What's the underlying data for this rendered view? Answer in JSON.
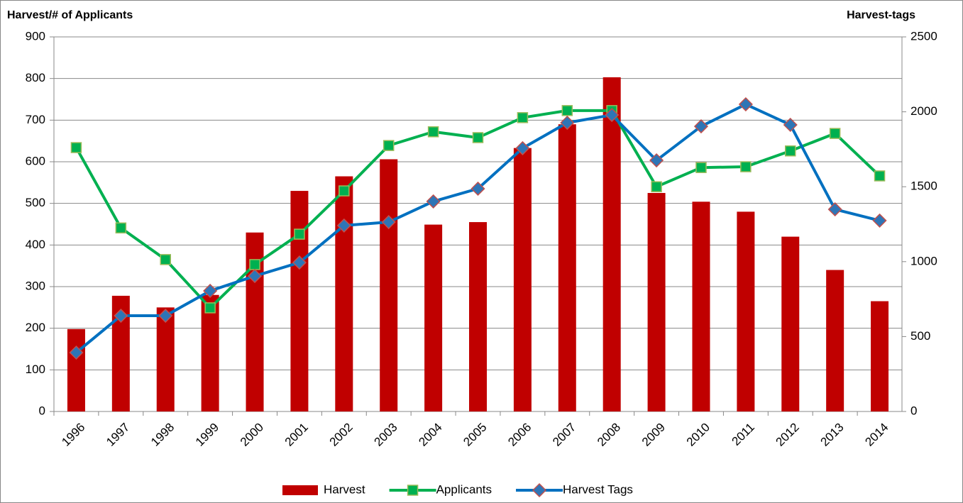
{
  "chart_data": {
    "type": "combo",
    "y_label": "Harvest/# of Applicants",
    "y2_label": "Harvest-tags",
    "categories": [
      "1996",
      "1997",
      "1998",
      "1999",
      "2000",
      "2001",
      "2002",
      "2003",
      "2004",
      "2005",
      "2006",
      "2007",
      "2008",
      "2009",
      "2010",
      "2011",
      "2012",
      "2013",
      "2014"
    ],
    "series": [
      {
        "name": "Harvest",
        "type": "bar",
        "color": "#c00000",
        "values": [
          198,
          278,
          250,
          280,
          430,
          530,
          565,
          606,
          449,
          455,
          633,
          690,
          803,
          525,
          504,
          480,
          420,
          340,
          265
        ]
      },
      {
        "name": "Applicants",
        "type": "line",
        "color": "#00b050",
        "marker": "square",
        "marker_color": "#00b050",
        "marker_edge_color": "#9bbb59",
        "values": [
          634,
          441,
          365,
          249,
          353,
          426,
          530,
          639,
          672,
          658,
          706,
          723,
          723,
          540,
          586,
          588,
          626,
          668,
          566
        ]
      },
      {
        "name": "Harvest Tags",
        "type": "line",
        "axis": "y2",
        "color": "#0070c0",
        "marker": "diamond",
        "marker_color": "#2e75b6",
        "marker_edge_color": "#c0504d",
        "values": [
          393,
          639,
          639,
          805,
          904,
          994,
          1241,
          1264,
          1402,
          1487,
          1757,
          1927,
          1979,
          1676,
          1903,
          2050,
          1913,
          1349,
          1274
        ]
      }
    ],
    "ylim": [
      0,
      900
    ],
    "yticks": [
      0,
      100,
      200,
      300,
      400,
      500,
      600,
      700,
      800,
      900
    ],
    "y2lim": [
      0,
      2500
    ],
    "y2ticks": [
      0,
      500,
      1000,
      1500,
      2000,
      2500
    ],
    "grid": true,
    "legend": "bottom"
  }
}
